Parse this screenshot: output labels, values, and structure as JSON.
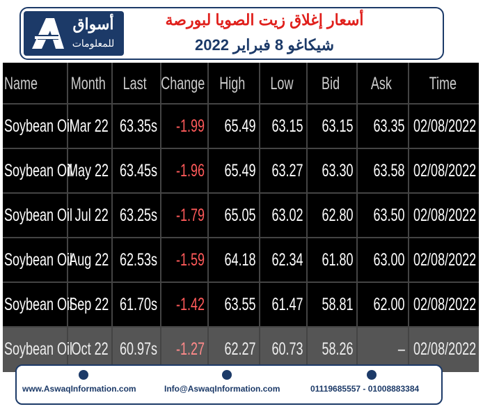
{
  "header": {
    "logo_name": "أسواق",
    "logo_subtitle": "للمعلومات",
    "title_line1": "أسعار إغلاق زيت الصويا لبورصة",
    "title_line2": "شيكاغو 8 فبراير 2022"
  },
  "table": {
    "columns": [
      "Name",
      "Month",
      "Last",
      "Change",
      "High",
      "Low",
      "Bid",
      "Ask",
      "Time"
    ],
    "rows": [
      [
        "Soybean Oil",
        "Mar 22",
        "63.35s",
        "-1.99",
        "65.49",
        "63.15",
        "63.15",
        "63.35",
        "02/08/2022"
      ],
      [
        "Soybean Oil",
        "May 22",
        "63.45s",
        "-1.96",
        "65.49",
        "63.27",
        "63.30",
        "63.58",
        "02/08/2022"
      ],
      [
        "Soybean Oil",
        "Jul 22",
        "63.25s",
        "-1.79",
        "65.05",
        "63.02",
        "62.80",
        "63.50",
        "02/08/2022"
      ],
      [
        "Soybean Oil",
        "Aug 22",
        "62.53s",
        "-1.59",
        "64.18",
        "62.34",
        "61.80",
        "63.00",
        "02/08/2022"
      ],
      [
        "Soybean Oil",
        "Sep 22",
        "61.70s",
        "-1.42",
        "63.55",
        "61.47",
        "58.81",
        "62.00",
        "02/08/2022"
      ],
      [
        "Soybean Oil",
        "Oct 22",
        "60.97s",
        "-1.27",
        "62.27",
        "60.73",
        "58.26",
        "–",
        "02/08/2022"
      ]
    ]
  },
  "footer": {
    "website": "www.AswaqInformation.com",
    "email": "Info@AswaqInformation.com",
    "phones": "01119685557 - 01008883384"
  }
}
